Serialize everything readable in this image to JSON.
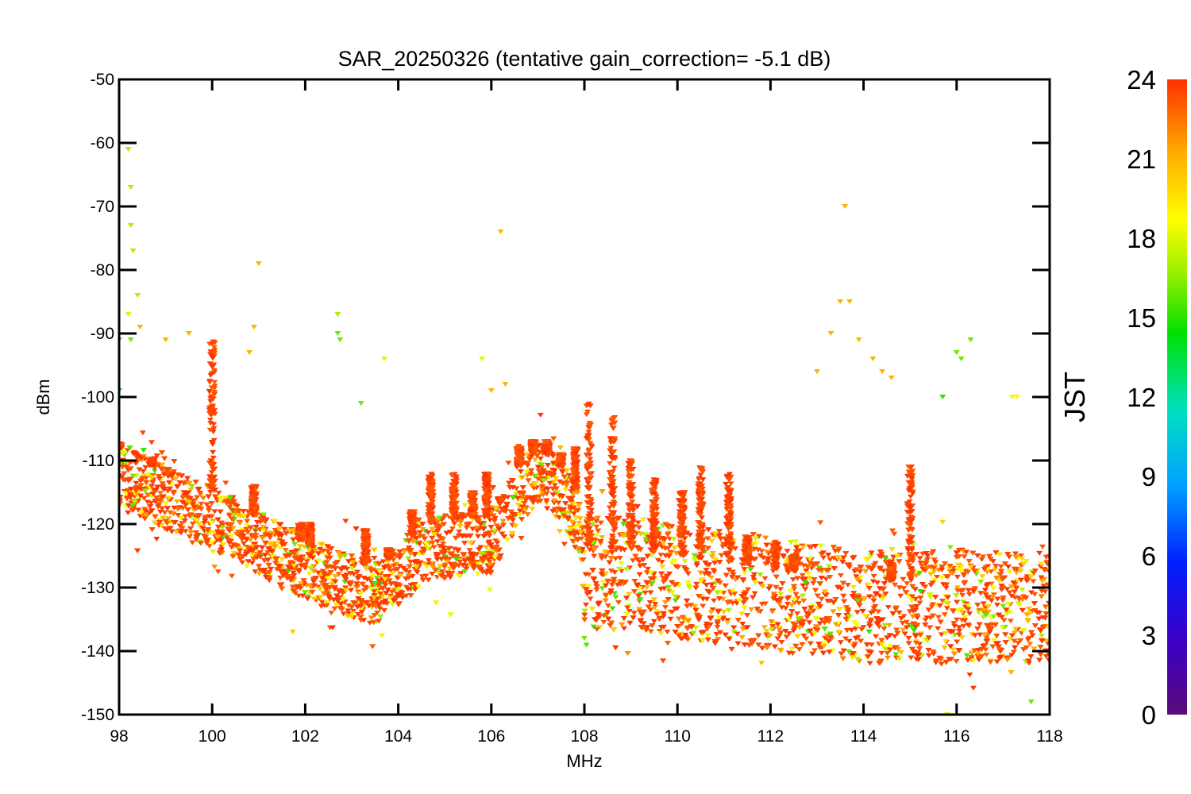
{
  "chart_data": {
    "type": "scatter",
    "title": "SAR_20250326 (tentative gain_correction= -5.1 dB)",
    "xlabel": "MHz",
    "ylabel": "dBm",
    "xlim": [
      98,
      118
    ],
    "ylim": [
      -150,
      -50
    ],
    "xticks": [
      "98",
      "100",
      "102",
      "104",
      "106",
      "108",
      "110",
      "112",
      "114",
      "116",
      "118"
    ],
    "yticks": [
      "-50",
      "-60",
      "-70",
      "-80",
      "-90",
      "-100",
      "-110",
      "-120",
      "-130",
      "-140",
      "-150"
    ],
    "grid": false,
    "marker": "downward-triangle",
    "colorbar": {
      "label": "JST",
      "range": [
        0,
        24
      ],
      "ticks": [
        "0",
        "3",
        "6",
        "9",
        "12",
        "15",
        "18",
        "21",
        "24"
      ],
      "colormap": "rainbow",
      "colors": [
        "#5a0a7a",
        "#3a00c8",
        "#0020ff",
        "#00a0ff",
        "#00e0c0",
        "#00e000",
        "#a0f000",
        "#ffff00",
        "#ffb000",
        "#ff3000"
      ]
    },
    "noise_floor": [
      [
        98.0,
        -112
      ],
      [
        99.0,
        -116
      ],
      [
        100.0,
        -119
      ],
      [
        101.0,
        -123
      ],
      [
        102.0,
        -127
      ],
      [
        103.0,
        -130
      ],
      [
        103.6,
        -131
      ],
      [
        104.0,
        -128
      ],
      [
        104.6,
        -124
      ],
      [
        105.5,
        -123
      ],
      [
        106.0,
        -123
      ],
      [
        106.6,
        -115
      ],
      [
        107.0,
        -112
      ],
      [
        107.5,
        -115
      ],
      [
        107.9,
        -120
      ],
      [
        108.0,
        -128
      ],
      [
        109.0,
        -128
      ],
      [
        110.0,
        -129
      ],
      [
        111.0,
        -130
      ],
      [
        112.0,
        -131
      ],
      [
        113.0,
        -132
      ],
      [
        114.0,
        -133
      ],
      [
        115.0,
        -133
      ],
      [
        116.0,
        -133
      ],
      [
        117.0,
        -133
      ],
      [
        118.0,
        -133
      ]
    ],
    "peaks": [
      {
        "x": 98.0,
        "y": -108
      },
      {
        "x": 98.7,
        "y": -110
      },
      {
        "x": 99.1,
        "y": -112
      },
      {
        "x": 100.0,
        "y": -91
      },
      {
        "x": 100.9,
        "y": -114
      },
      {
        "x": 101.9,
        "y": -120
      },
      {
        "x": 102.1,
        "y": -120
      },
      {
        "x": 103.3,
        "y": -121
      },
      {
        "x": 103.8,
        "y": -124
      },
      {
        "x": 104.3,
        "y": -118
      },
      {
        "x": 104.7,
        "y": -112
      },
      {
        "x": 105.2,
        "y": -112
      },
      {
        "x": 105.6,
        "y": -115
      },
      {
        "x": 105.9,
        "y": -112
      },
      {
        "x": 106.2,
        "y": -116
      },
      {
        "x": 106.6,
        "y": -108
      },
      {
        "x": 106.9,
        "y": -107
      },
      {
        "x": 107.2,
        "y": -107
      },
      {
        "x": 107.5,
        "y": -109
      },
      {
        "x": 107.8,
        "y": -108
      },
      {
        "x": 108.1,
        "y": -101
      },
      {
        "x": 108.6,
        "y": -103
      },
      {
        "x": 109.0,
        "y": -110
      },
      {
        "x": 109.5,
        "y": -113
      },
      {
        "x": 110.1,
        "y": -115
      },
      {
        "x": 110.5,
        "y": -111
      },
      {
        "x": 111.1,
        "y": -112
      },
      {
        "x": 111.5,
        "y": -122
      },
      {
        "x": 112.1,
        "y": -123
      },
      {
        "x": 112.5,
        "y": -125
      },
      {
        "x": 114.6,
        "y": -126
      },
      {
        "x": 115.0,
        "y": -111
      }
    ],
    "outliers": [
      {
        "x": 98.2,
        "y": -61,
        "t": 17
      },
      {
        "x": 98.25,
        "y": -67,
        "t": 17
      },
      {
        "x": 98.25,
        "y": -73,
        "t": 17
      },
      {
        "x": 98.3,
        "y": -77,
        "t": 17
      },
      {
        "x": 98.4,
        "y": -84,
        "t": 17
      },
      {
        "x": 98.2,
        "y": -87,
        "t": 18
      },
      {
        "x": 98.25,
        "y": -91,
        "t": 16
      },
      {
        "x": 98.45,
        "y": -89,
        "t": 21
      },
      {
        "x": 98.0,
        "y": -91,
        "t": 15
      },
      {
        "x": 98.0,
        "y": -99,
        "t": 14
      },
      {
        "x": 99.0,
        "y": -91,
        "t": 21
      },
      {
        "x": 99.5,
        "y": -90,
        "t": 21
      },
      {
        "x": 101.0,
        "y": -79,
        "t": 21
      },
      {
        "x": 100.9,
        "y": -89,
        "t": 21
      },
      {
        "x": 100.8,
        "y": -93,
        "t": 21
      },
      {
        "x": 102.7,
        "y": -87,
        "t": 17
      },
      {
        "x": 102.7,
        "y": -90,
        "t": 16
      },
      {
        "x": 102.75,
        "y": -91,
        "t": 16
      },
      {
        "x": 103.7,
        "y": -94,
        "t": 18
      },
      {
        "x": 103.2,
        "y": -101,
        "t": 16
      },
      {
        "x": 105.8,
        "y": -94,
        "t": 18
      },
      {
        "x": 106.2,
        "y": -74,
        "t": 21
      },
      {
        "x": 106.0,
        "y": -99,
        "t": 21
      },
      {
        "x": 106.3,
        "y": -98,
        "t": 21
      },
      {
        "x": 113.6,
        "y": -70,
        "t": 21
      },
      {
        "x": 113.5,
        "y": -85,
        "t": 21
      },
      {
        "x": 113.7,
        "y": -85,
        "t": 21
      },
      {
        "x": 113.9,
        "y": -91,
        "t": 21
      },
      {
        "x": 114.2,
        "y": -94,
        "t": 21
      },
      {
        "x": 114.4,
        "y": -96,
        "t": 21
      },
      {
        "x": 114.6,
        "y": -97,
        "t": 21
      },
      {
        "x": 113.3,
        "y": -90,
        "t": 21
      },
      {
        "x": 113.0,
        "y": -96,
        "t": 21
      },
      {
        "x": 116.0,
        "y": -93,
        "t": 16
      },
      {
        "x": 116.1,
        "y": -94,
        "t": 16
      },
      {
        "x": 116.3,
        "y": -91,
        "t": 16
      },
      {
        "x": 117.2,
        "y": -100,
        "t": 19
      },
      {
        "x": 117.3,
        "y": -100,
        "t": 19
      },
      {
        "x": 115.7,
        "y": -100,
        "t": 15
      },
      {
        "x": 115.8,
        "y": -150,
        "t": 18
      },
      {
        "x": 117.6,
        "y": -148,
        "t": 16
      },
      {
        "x": 108.0,
        "y": -138,
        "t": 16
      }
    ]
  }
}
